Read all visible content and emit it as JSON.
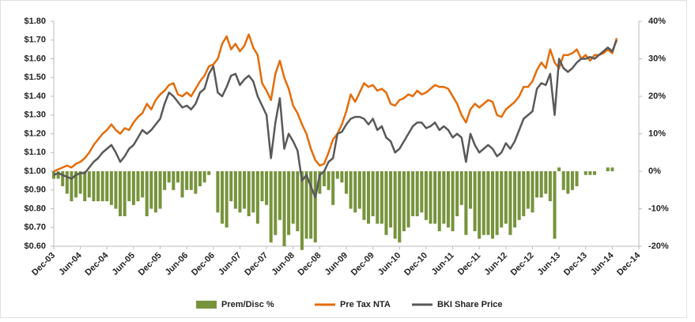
{
  "chart_data": {
    "type": "bar-line",
    "categories": [
      "Dec-03",
      null,
      null,
      null,
      null,
      null,
      "Jun-04",
      null,
      null,
      null,
      null,
      null,
      "Dec-04",
      null,
      null,
      null,
      null,
      null,
      "Jun-05",
      null,
      null,
      null,
      null,
      null,
      "Dec-05",
      null,
      null,
      null,
      null,
      null,
      "Jun-06",
      null,
      null,
      null,
      null,
      null,
      "Dec-06",
      null,
      null,
      null,
      null,
      null,
      "Jun-07",
      null,
      null,
      null,
      null,
      null,
      "Dec-07",
      null,
      null,
      null,
      null,
      null,
      "Jun-08",
      null,
      null,
      null,
      null,
      null,
      "Dec-08",
      null,
      null,
      null,
      null,
      null,
      "Jun-09",
      null,
      null,
      null,
      null,
      null,
      "Dec-09",
      null,
      null,
      null,
      null,
      null,
      "Jun-10",
      null,
      null,
      null,
      null,
      null,
      "Dec-10",
      null,
      null,
      null,
      null,
      null,
      "Jun-11",
      null,
      null,
      null,
      null,
      null,
      "Dec-11",
      null,
      null,
      null,
      null,
      null,
      "Jun-12",
      null,
      null,
      null,
      null,
      null,
      "Dec-12",
      null,
      null,
      null,
      null,
      null,
      "Jun-13",
      null,
      null,
      null,
      null,
      null,
      "Dec-13",
      null,
      null,
      null,
      null,
      null,
      "Jun-14",
      null,
      null,
      null,
      null,
      null,
      "Dec-14"
    ],
    "series": [
      {
        "name": "Prem/Disc %",
        "kind": "bar",
        "axis": "y2",
        "color": "#77933c",
        "values": [
          -2,
          -2,
          -4,
          -6,
          -8,
          -7,
          -6,
          -8,
          -7,
          -8,
          -8,
          -8,
          -8,
          -9,
          -10,
          -12,
          -12,
          -8,
          -9,
          -8,
          -7,
          -12,
          -10,
          -11,
          -10,
          -5,
          -3,
          -5,
          -3,
          -7,
          -5,
          -5,
          -6,
          -4,
          -3,
          -1,
          0,
          -11,
          -14,
          -15,
          -8,
          -10,
          -11,
          -10,
          -12,
          -11,
          -14,
          -8,
          -9,
          -19,
          -17,
          -13,
          -20,
          -17,
          -14,
          -16,
          -21,
          -18,
          -18,
          -19,
          -6,
          -4,
          -5,
          -9,
          -2,
          -3,
          -6,
          -10,
          -11,
          -10,
          -13,
          -14,
          -12,
          -14,
          -14,
          -17,
          -15,
          -18,
          -19,
          -16,
          -15,
          -12,
          -12,
          -11,
          -13,
          -14,
          -14,
          -16,
          -14,
          -15,
          -16,
          -12,
          -9,
          -17,
          -10,
          -16,
          -18,
          -17,
          -17,
          -18,
          -17,
          -15,
          -14,
          -17,
          -15,
          -13,
          -12,
          -10,
          -11,
          -7,
          -7,
          -6,
          -8,
          -18,
          1,
          -5,
          -6,
          -5,
          -4,
          0,
          -1,
          -1,
          -1,
          0,
          0,
          1,
          1,
          0,
          null,
          null,
          null,
          null,
          null
        ]
      },
      {
        "name": "Pre Tax NTA",
        "kind": "line",
        "color": "#e46c0a",
        "values": [
          1.0,
          1.01,
          1.02,
          1.03,
          1.02,
          1.04,
          1.05,
          1.07,
          1.1,
          1.14,
          1.17,
          1.2,
          1.22,
          1.25,
          1.22,
          1.2,
          1.23,
          1.22,
          1.26,
          1.29,
          1.31,
          1.36,
          1.33,
          1.38,
          1.41,
          1.43,
          1.46,
          1.47,
          1.41,
          1.4,
          1.42,
          1.4,
          1.44,
          1.48,
          1.51,
          1.56,
          1.57,
          1.6,
          1.68,
          1.72,
          1.65,
          1.68,
          1.64,
          1.67,
          1.73,
          1.66,
          1.62,
          1.47,
          1.43,
          1.38,
          1.52,
          1.59,
          1.5,
          1.44,
          1.35,
          1.31,
          1.25,
          1.2,
          1.12,
          1.06,
          1.03,
          1.04,
          1.1,
          1.17,
          1.2,
          1.25,
          1.32,
          1.41,
          1.37,
          1.42,
          1.47,
          1.45,
          1.46,
          1.43,
          1.44,
          1.42,
          1.36,
          1.35,
          1.38,
          1.39,
          1.41,
          1.4,
          1.43,
          1.41,
          1.42,
          1.44,
          1.46,
          1.45,
          1.45,
          1.44,
          1.4,
          1.36,
          1.3,
          1.26,
          1.33,
          1.36,
          1.34,
          1.36,
          1.38,
          1.37,
          1.3,
          1.29,
          1.33,
          1.35,
          1.37,
          1.4,
          1.45,
          1.45,
          1.48,
          1.54,
          1.58,
          1.55,
          1.65,
          1.58,
          1.55,
          1.62,
          1.62,
          1.63,
          1.65,
          1.6,
          1.62,
          1.59,
          1.62,
          1.62,
          1.63,
          1.65,
          1.63,
          1.71,
          null,
          null,
          null,
          null,
          null
        ]
      },
      {
        "name": "BKI Share Price",
        "kind": "line",
        "color": "#595959",
        "values": [
          0.98,
          0.99,
          0.98,
          0.97,
          0.96,
          0.98,
          0.99,
          0.99,
          1.02,
          1.05,
          1.07,
          1.1,
          1.12,
          1.14,
          1.1,
          1.05,
          1.08,
          1.12,
          1.14,
          1.18,
          1.22,
          1.2,
          1.22,
          1.25,
          1.28,
          1.36,
          1.42,
          1.4,
          1.37,
          1.34,
          1.35,
          1.33,
          1.36,
          1.42,
          1.44,
          1.52,
          1.56,
          1.42,
          1.4,
          1.45,
          1.51,
          1.52,
          1.46,
          1.49,
          1.51,
          1.48,
          1.4,
          1.35,
          1.3,
          1.07,
          1.26,
          1.39,
          1.12,
          1.2,
          1.16,
          1.11,
          0.95,
          0.98,
          0.92,
          0.86,
          0.98,
          1.0,
          1.05,
          1.07,
          1.2,
          1.21,
          1.25,
          1.28,
          1.29,
          1.29,
          1.28,
          1.25,
          1.28,
          1.22,
          1.24,
          1.18,
          1.16,
          1.1,
          1.12,
          1.16,
          1.2,
          1.24,
          1.26,
          1.26,
          1.23,
          1.24,
          1.26,
          1.22,
          1.24,
          1.22,
          1.18,
          1.2,
          1.18,
          1.05,
          1.2,
          1.14,
          1.1,
          1.12,
          1.14,
          1.12,
          1.08,
          1.1,
          1.15,
          1.12,
          1.16,
          1.22,
          1.28,
          1.3,
          1.32,
          1.44,
          1.47,
          1.46,
          1.52,
          1.3,
          1.6,
          1.55,
          1.53,
          1.55,
          1.58,
          1.6,
          1.6,
          1.61,
          1.6,
          1.62,
          1.64,
          1.66,
          1.64,
          1.7,
          null,
          null,
          null,
          null,
          null
        ]
      }
    ],
    "ylim": [
      0.6,
      1.8
    ],
    "yticks": [
      {
        "value": 0.6,
        "label": "$0.60"
      },
      {
        "value": 0.7,
        "label": "$0.70"
      },
      {
        "value": 0.8,
        "label": "$0.80"
      },
      {
        "value": 0.9,
        "label": "$0.90"
      },
      {
        "value": 1.0,
        "label": "$1.00"
      },
      {
        "value": 1.1,
        "label": "$1.10"
      },
      {
        "value": 1.2,
        "label": "$1.20"
      },
      {
        "value": 1.3,
        "label": "$1.30"
      },
      {
        "value": 1.4,
        "label": "$1.40"
      },
      {
        "value": 1.5,
        "label": "$1.50"
      },
      {
        "value": 1.6,
        "label": "$1.60"
      },
      {
        "value": 1.7,
        "label": "$1.70"
      },
      {
        "value": 1.8,
        "label": "$1.80"
      }
    ],
    "y2lim": [
      -20,
      40
    ],
    "y2ticks": [
      {
        "value": -20,
        "label": "-20%"
      },
      {
        "value": -10,
        "label": "-10%"
      },
      {
        "value": 0,
        "label": "0%"
      },
      {
        "value": 10,
        "label": "10%"
      },
      {
        "value": 20,
        "label": "20%"
      },
      {
        "value": 30,
        "label": "30%"
      },
      {
        "value": 40,
        "label": "40%"
      }
    ],
    "grid": false,
    "legend": "bottom"
  }
}
